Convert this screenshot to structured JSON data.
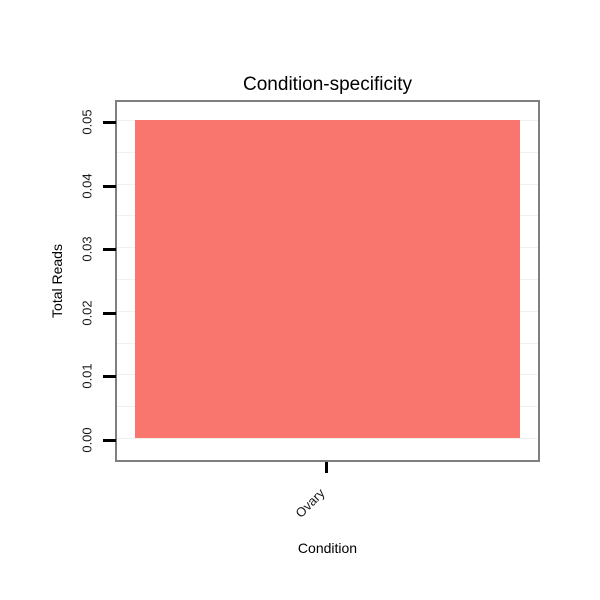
{
  "chart_data": {
    "type": "bar",
    "title": "Condition-specificity",
    "xlabel": "Condition",
    "ylabel": "Total Reads",
    "categories": [
      "Ovary"
    ],
    "values": [
      0.05
    ],
    "ylim": [
      0,
      0.05
    ],
    "yticks": [
      "0.00",
      "0.01",
      "0.02",
      "0.03",
      "0.04",
      "0.05"
    ],
    "legend": "none",
    "grid": "faint-horizontal",
    "colors": {
      "bar_fill": "#F8766D",
      "plot_border": "#7f7f7f",
      "tick": "#000000",
      "gridline": "#f0f0f0",
      "background": "#ffffff"
    }
  }
}
